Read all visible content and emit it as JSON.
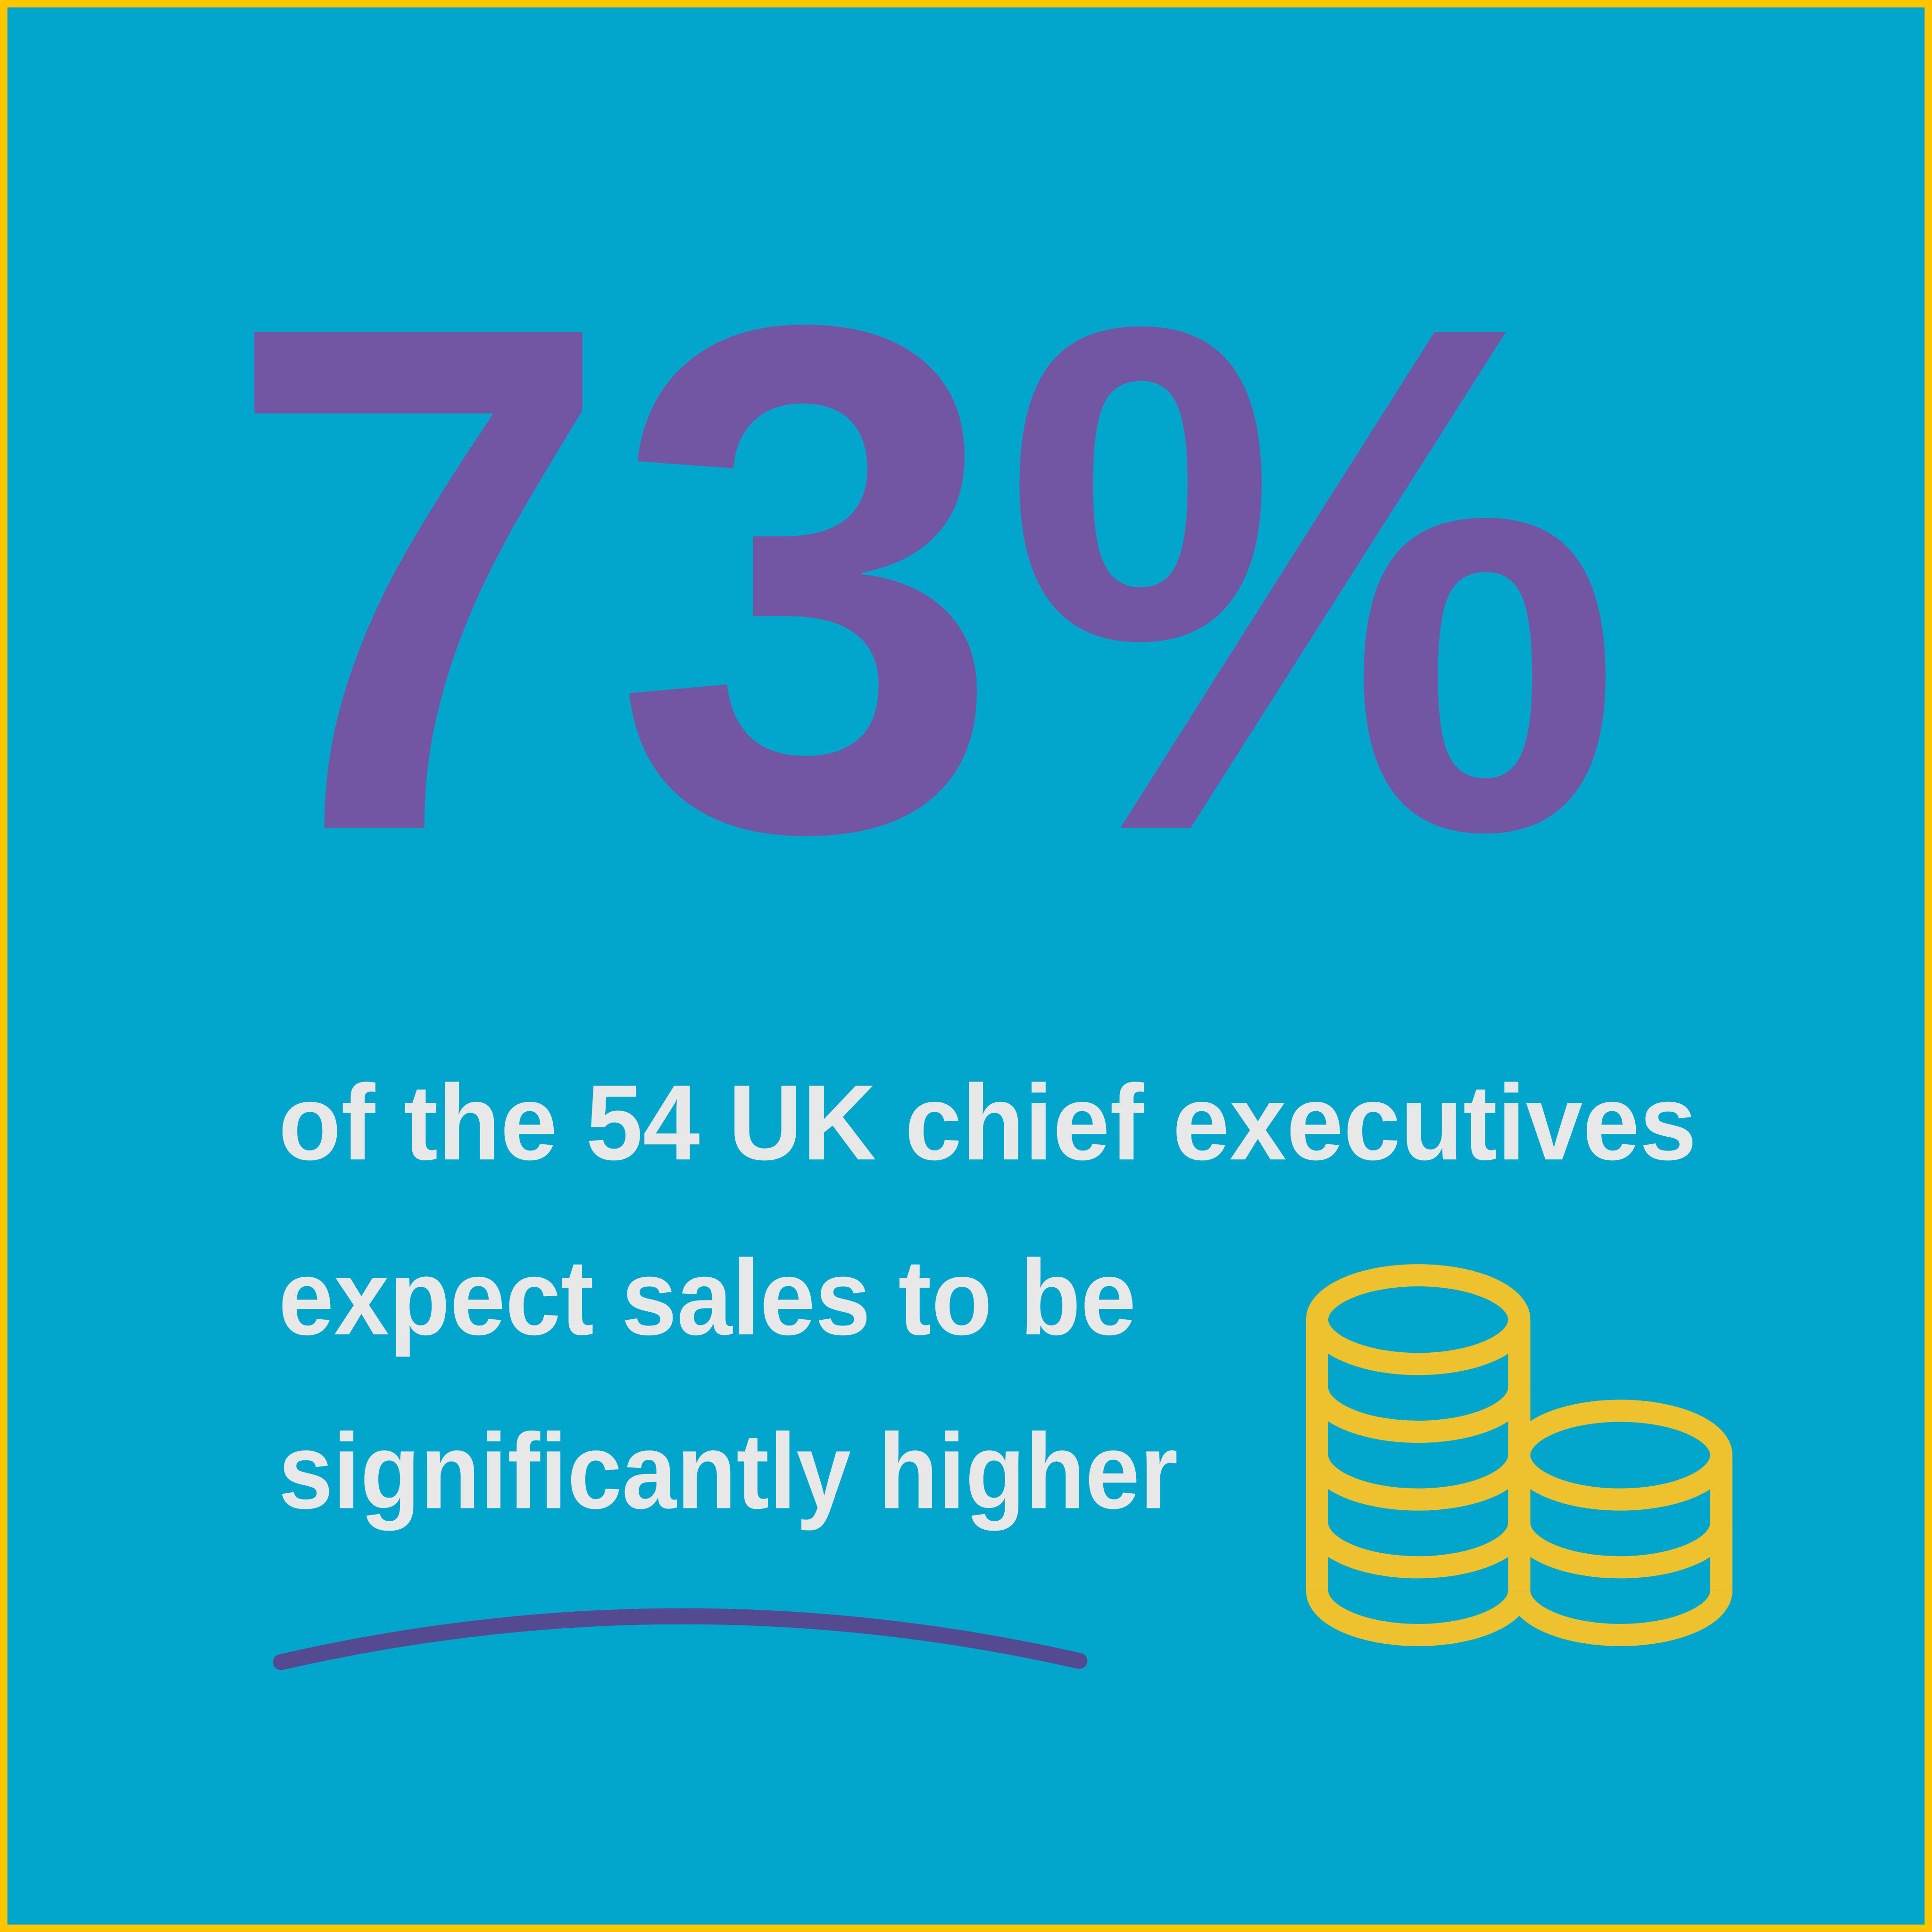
{
  "stat": {
    "value": "73%",
    "caption_lines": [
      "of the 54 UK chief executives",
      "expect sales to be",
      "significantly higher"
    ]
  },
  "icons": [
    "coins-stack-icon",
    "underline-swoosh"
  ],
  "colors": {
    "background": "#02a6cc",
    "border": "#fdc400",
    "stat": "#7256a3",
    "caption": "#e8e8e8",
    "swoosh": "#544a92",
    "coins": "#eec12e"
  }
}
